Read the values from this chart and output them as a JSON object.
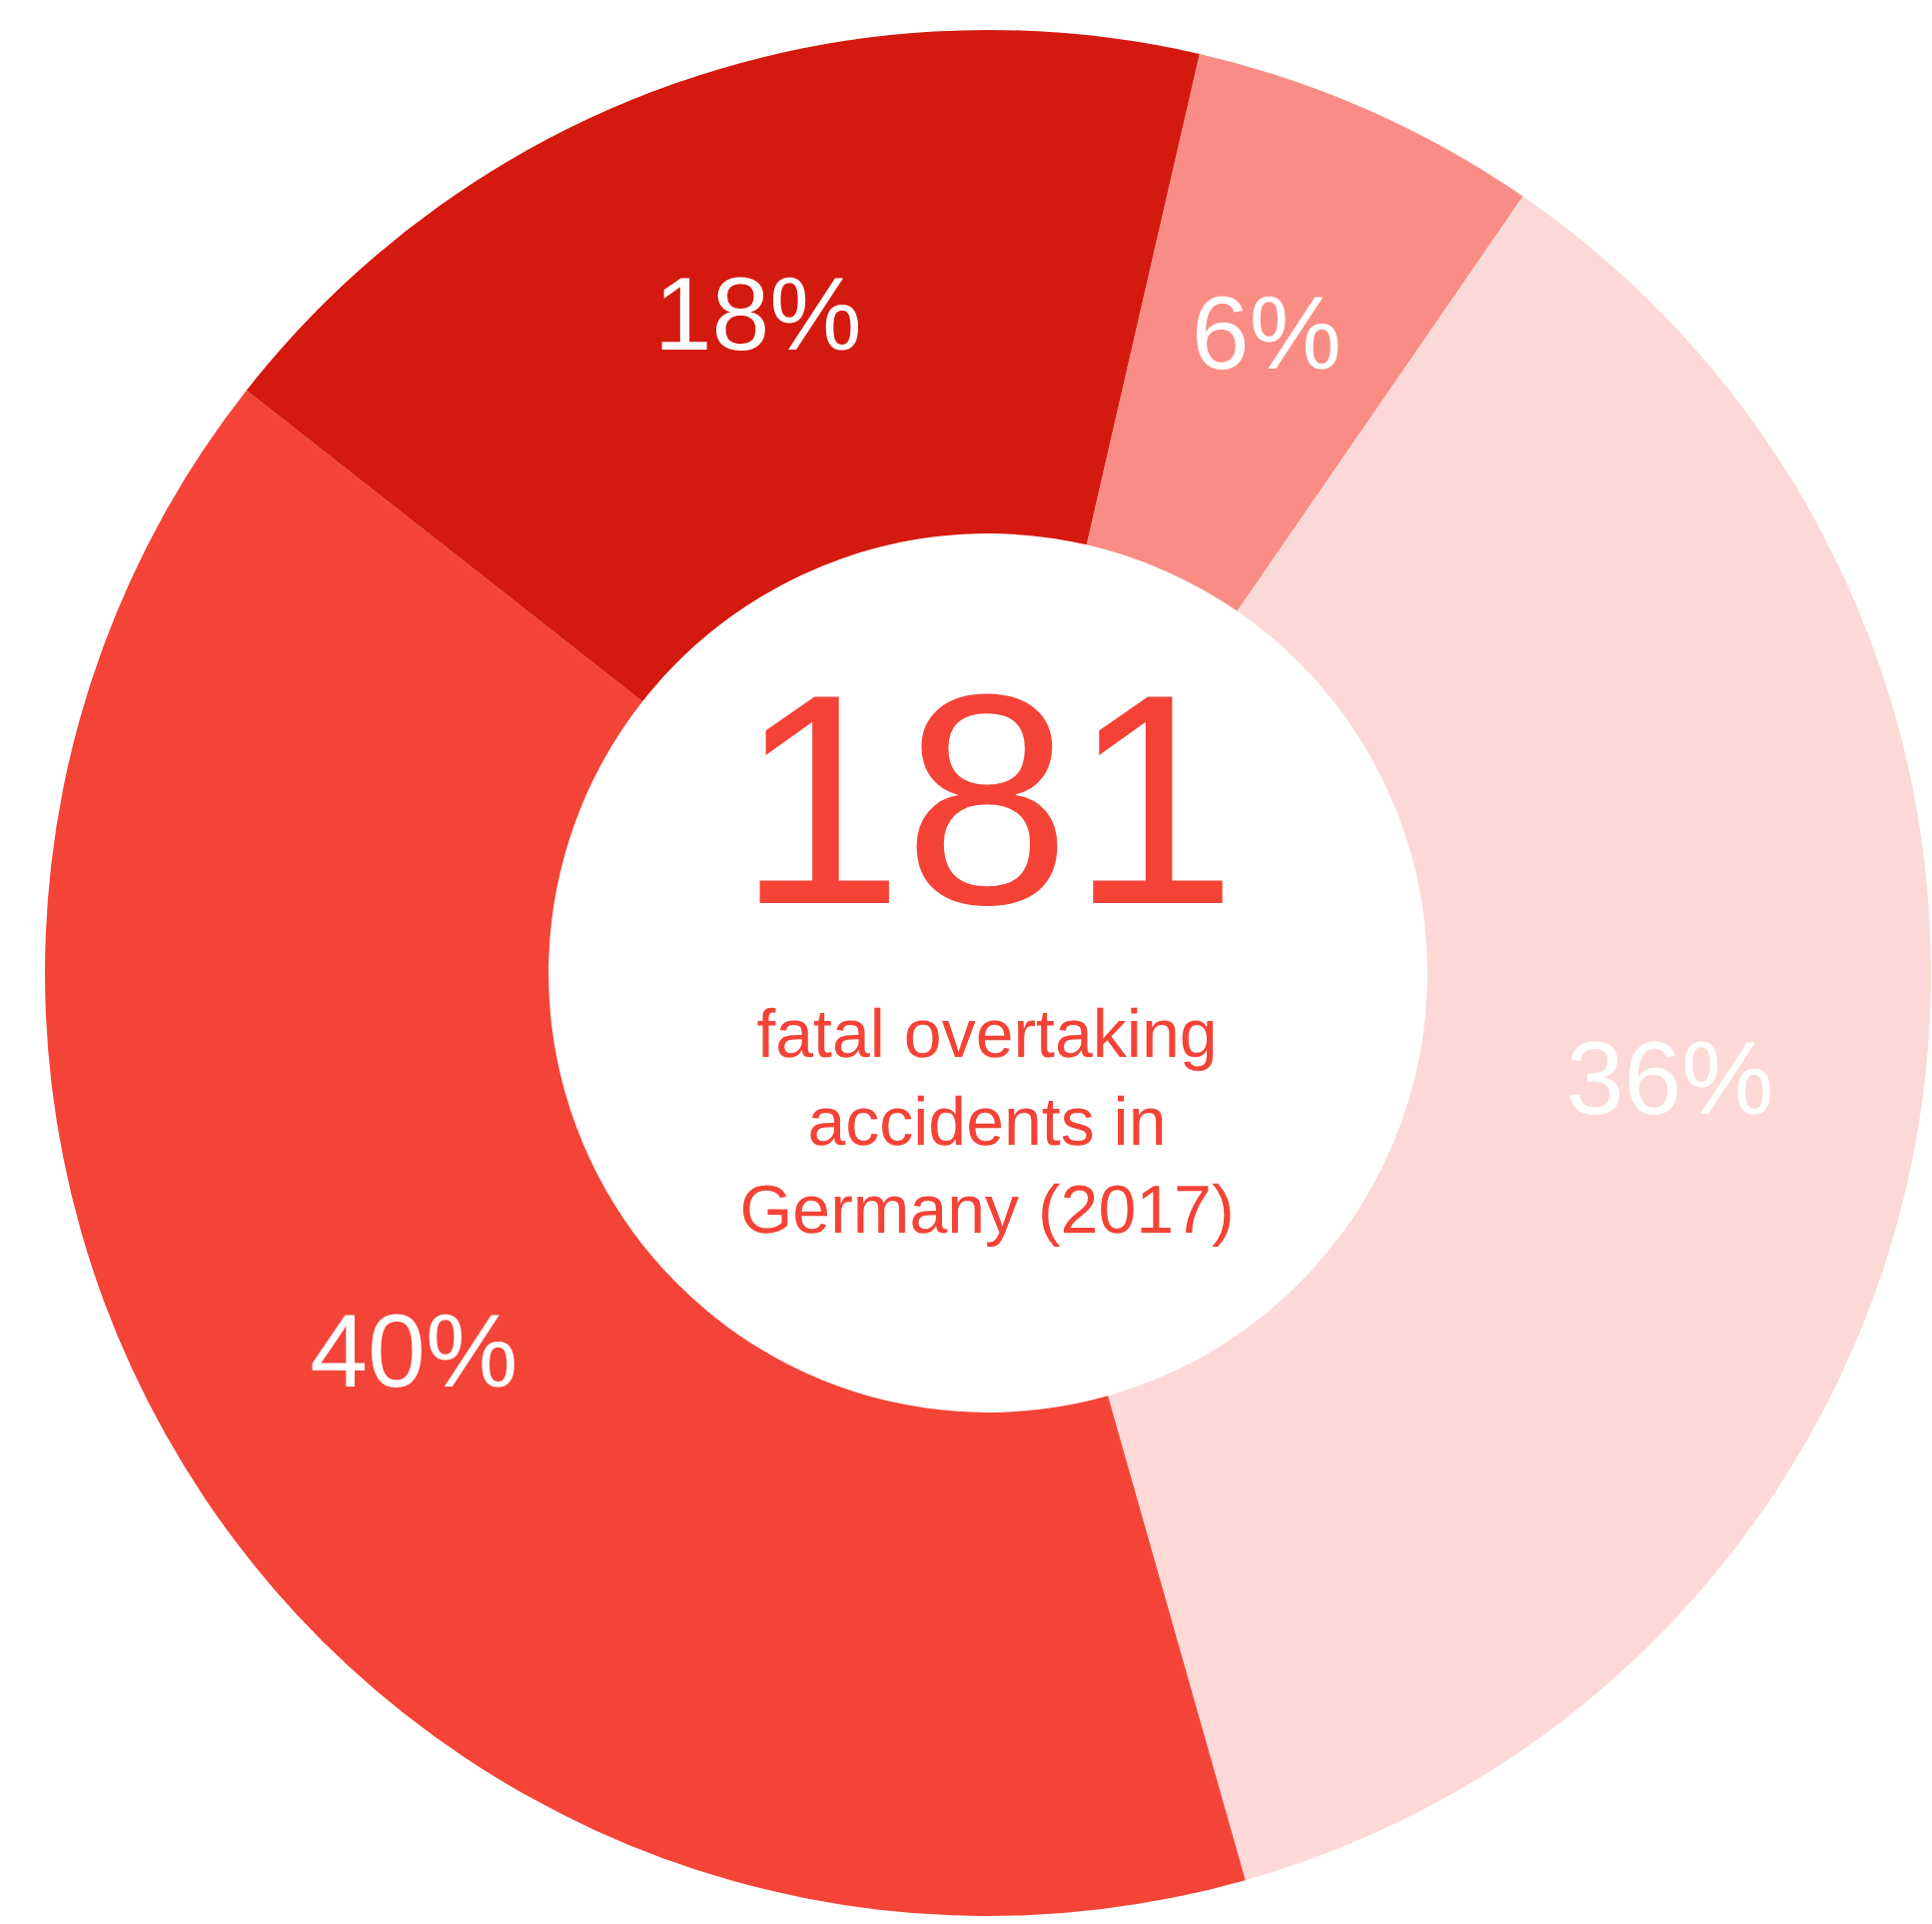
{
  "chart_data": {
    "type": "donut",
    "categories": [
      null,
      null,
      null,
      null
    ],
    "values": [
      6,
      36,
      40,
      18
    ],
    "colors": [
      "#f98d86",
      "#fcd9d7",
      "#f44438",
      "#d4190e"
    ],
    "value_labels": [
      "6%",
      "36%",
      "40%",
      "18%"
    ],
    "annotations": [
      "181",
      "fatal overtaking accidents in Germany (2017)"
    ],
    "legend": false
  }
}
